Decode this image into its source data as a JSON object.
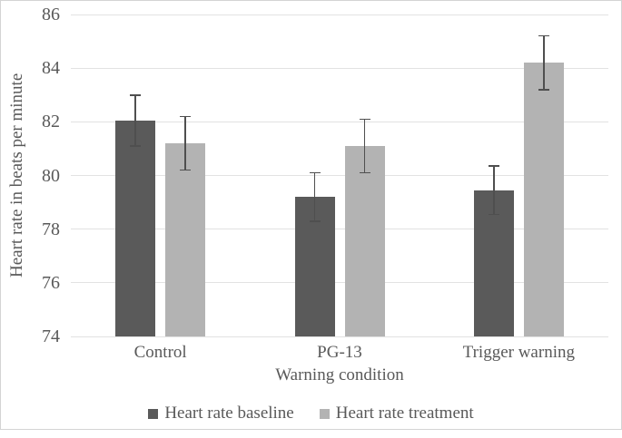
{
  "figure": {
    "background": "#ffffff",
    "border_color": "#d4d4d4"
  },
  "chart_data": {
    "type": "bar",
    "title": "",
    "xlabel": "Warning condition",
    "ylabel": "Heart rate in beats per minute",
    "categories": [
      "Control",
      "PG-13",
      "Trigger warning"
    ],
    "series": [
      {
        "name": "Heart rate baseline",
        "color": "#5a5a5a",
        "values": [
          82.05,
          79.2,
          79.45
        ],
        "errors": [
          0.95,
          0.9,
          0.9
        ]
      },
      {
        "name": "Heart rate treatment",
        "color": "#b3b3b3",
        "values": [
          81.2,
          81.1,
          84.2
        ],
        "errors": [
          1.0,
          1.0,
          1.0
        ]
      }
    ],
    "ylim": [
      74,
      86
    ],
    "yticks": [
      74,
      76,
      78,
      80,
      82,
      84,
      86
    ],
    "grid": true,
    "legend_position": "bottom",
    "text_color": "#595959",
    "gridline_color": "#e2e2e2",
    "error_bar_color": "#4f4f4f"
  }
}
